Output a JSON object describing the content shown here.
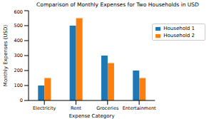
{
  "chart_data": {
    "type": "bar",
    "title": "Comparison of Monthly Expenses for Two Households in USD",
    "x_label": "Expense Category",
    "y_label": "Monthly Expenses (USD)",
    "categories": [
      "Electricity",
      "Rent",
      "Groceries",
      "Entertainment"
    ],
    "series": [
      {
        "name": "Household 1",
        "color": "#1f77b4",
        "values": [
          100,
          500,
          300,
          200
        ]
      },
      {
        "name": "Household 2",
        "color": "#ff7f0e",
        "values": [
          150,
          550,
          250,
          150
        ]
      }
    ],
    "ylim": [
      0,
      600
    ],
    "yticks": [
      0,
      100,
      200,
      300,
      400,
      500,
      600
    ],
    "grid": false,
    "legend": "upper right"
  }
}
